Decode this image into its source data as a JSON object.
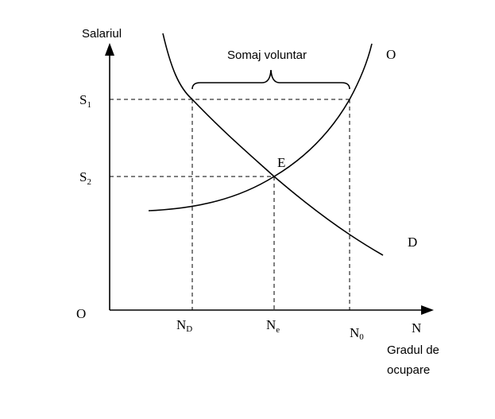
{
  "axes": {
    "y_label": "Salariul",
    "x_label": "N",
    "x_caption": [
      "Gradul de",
      "ocupare"
    ],
    "origin": "O"
  },
  "levels": [
    {
      "name": "S",
      "sub": "1"
    },
    {
      "name": "S",
      "sub": "2"
    }
  ],
  "points": [
    {
      "name": "N",
      "sub": "D"
    },
    {
      "name": "N",
      "sub": "e"
    },
    {
      "name": "N",
      "sub": "0"
    }
  ],
  "curves": {
    "supply": "O",
    "demand": "D",
    "equilibrium": "E"
  },
  "annotation": "Somaj voluntar"
}
